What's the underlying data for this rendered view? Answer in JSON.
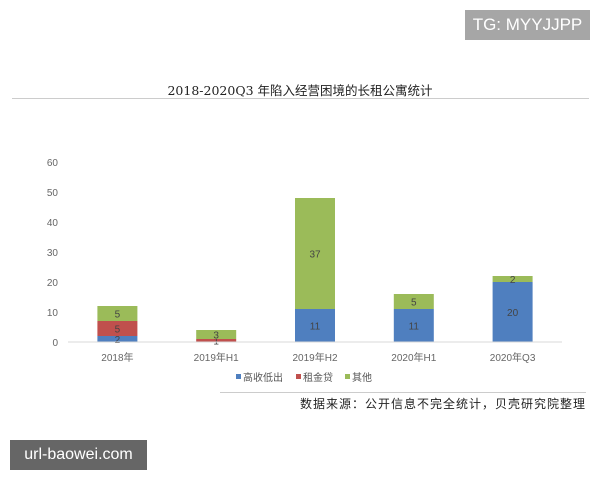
{
  "watermark_top": "TG: MYYJJPP",
  "watermark_bottom": "url-baowei.com",
  "source": "数据来源：公开信息不完全统计，贝壳研究院整理",
  "chart_data": {
    "type": "bar",
    "stacked": true,
    "title": "2018-2020Q3 年陷入经营困境的长租公寓统计",
    "xlabel": "",
    "ylabel": "",
    "ylim": [
      0,
      60
    ],
    "yticks": [
      0,
      10,
      20,
      30,
      40,
      50,
      60
    ],
    "grid": false,
    "legend_position": "bottom",
    "categories": [
      "2018年",
      "2019年H1",
      "2019年H2",
      "2020年H1",
      "2020年Q3"
    ],
    "series": [
      {
        "name": "高收低出",
        "color": "#4f7fbf",
        "values": [
          2,
          0,
          11,
          11,
          20
        ]
      },
      {
        "name": "租金贷",
        "color": "#c0504d",
        "values": [
          5,
          1,
          0,
          0,
          0
        ]
      },
      {
        "name": "其他",
        "color": "#9bbb59",
        "values": [
          5,
          3,
          37,
          5,
          2
        ]
      }
    ]
  }
}
